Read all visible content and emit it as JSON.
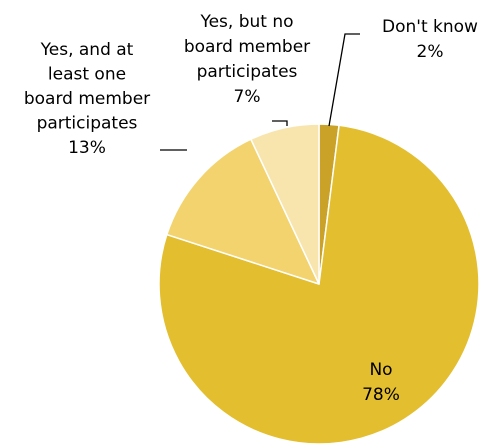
{
  "chart_data": {
    "type": "pie",
    "title": "",
    "start_angle_deg": 0,
    "direction": "clockwise",
    "slices": [
      {
        "name": "Don't know",
        "value": 2,
        "label_lines": [
          "Don't know",
          "2%"
        ],
        "color": "#C9A227"
      },
      {
        "name": "No",
        "value": 78,
        "label_lines": [
          "No",
          "78%"
        ],
        "color": "#E3BE2F"
      },
      {
        "name": "Yes, and at least one board member participates",
        "value": 13,
        "label_lines": [
          "Yes, and at",
          "least one",
          "board member",
          "participates",
          "13%"
        ],
        "color": "#F2D36D"
      },
      {
        "name": "Yes, but no board member participates",
        "value": 7,
        "label_lines": [
          "Yes, but no",
          "board member",
          "participates",
          "7%"
        ],
        "color": "#F8E5AE"
      }
    ]
  }
}
